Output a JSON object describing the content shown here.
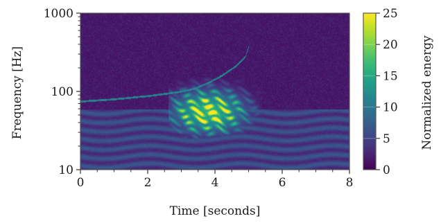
{
  "chart_data": {
    "type": "heatmap",
    "title": "",
    "xlabel": "Time [seconds]",
    "ylabel": "Frequency [Hz]",
    "colorbar_label": "Normalized energy",
    "xlim": [
      0,
      8
    ],
    "ylim": [
      10,
      1000
    ],
    "y_scale": "log",
    "x_ticks": [
      0,
      2,
      4,
      6,
      8
    ],
    "x_tick_labels": [
      "0",
      "2",
      "4",
      "6",
      "8"
    ],
    "y_ticks": [
      10,
      100,
      1000
    ],
    "y_tick_labels": [
      "10",
      "100",
      "1000"
    ],
    "colorbar_range": [
      0,
      25
    ],
    "colorbar_ticks": [
      0,
      5,
      10,
      15,
      20,
      25
    ],
    "colorbar_tick_labels": [
      "0",
      "5",
      "10",
      "15",
      "20",
      "25"
    ],
    "colormap": "viridis",
    "colormap_stops": [
      "#440154",
      "#482878",
      "#3e4989",
      "#31688e",
      "#26828e",
      "#1f9e89",
      "#35b779",
      "#6ece58",
      "#b5de2b",
      "#fde725"
    ],
    "grid": false,
    "chirp_track": {
      "description_free": true,
      "t": [
        0.0,
        1.0,
        2.0,
        2.6,
        3.0,
        3.4,
        3.8,
        4.2,
        4.6,
        4.9,
        5.0
      ],
      "f": [
        75,
        80,
        88,
        95,
        100,
        110,
        130,
        160,
        210,
        280,
        380
      ]
    },
    "high_energy_region": {
      "t_range": [
        2.6,
        5.4
      ],
      "f_range": [
        25,
        170
      ]
    }
  }
}
